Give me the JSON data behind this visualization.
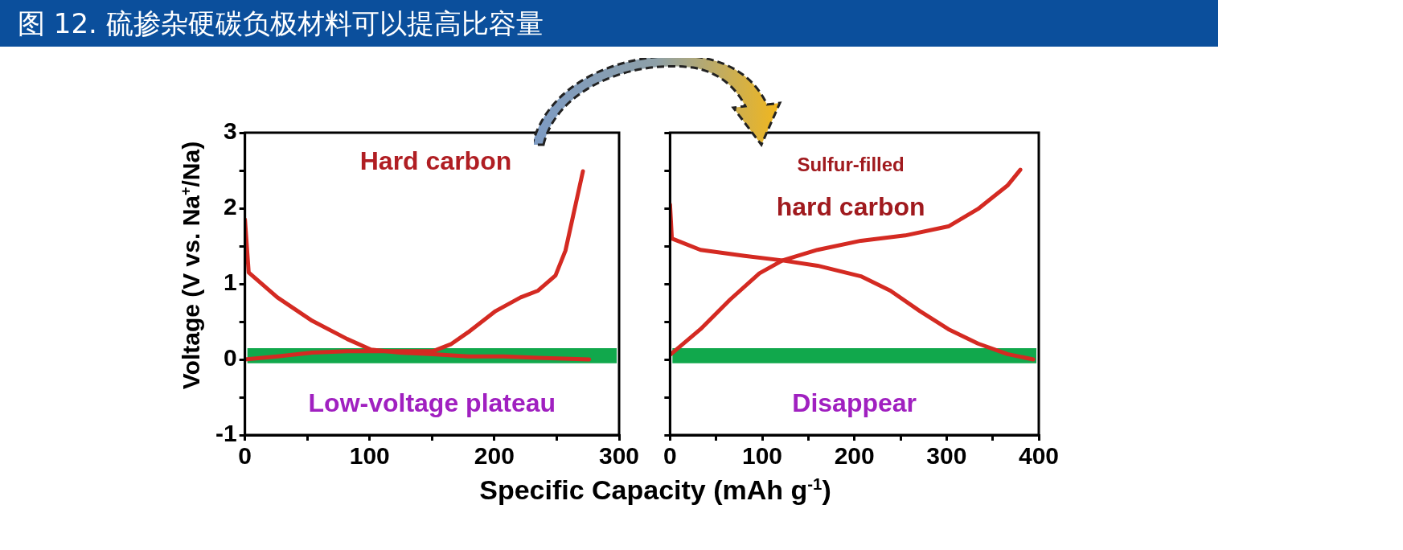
{
  "chart_data": [
    {
      "type": "line",
      "title": "图 12. 硫掺杂硬碳负极材料可以提高比容量",
      "xlabel": "Specific Capacity (mAh g$^{-1}$)",
      "ylabel": "Voltage (V vs. Na$^{+}$/Na)",
      "xlim": [
        0,
        300
      ],
      "ylim": [
        -1,
        3
      ],
      "xticks": [
        0,
        {
          "value": 50,
          "label": null
        },
        100,
        {
          "value": 150,
          "label": null
        },
        200,
        {
          "value": 250,
          "label": null
        },
        300
      ],
      "yticks": [
        -1,
        {
          "value": -0.5,
          "label": null
        },
        0,
        {
          "value": 0.5,
          "label": null
        },
        1,
        {
          "value": 1.5,
          "label": null
        },
        2,
        {
          "value": 2.5,
          "label": null
        },
        3
      ],
      "grid": false,
      "legend": false,
      "marker": "none",
      "line_style": "solid",
      "bands": [
        {
          "axis": "y",
          "from": -0.05,
          "to": 0.15,
          "color": "#11a84c"
        }
      ],
      "annotations": [
        "Hard carbon",
        "Low-voltage plateau"
      ],
      "series": [
        {
          "color": "#d42a22",
          "x": [
            0,
            3,
            26,
            54,
            82,
            101,
            124,
            151,
            179,
            207,
            235,
            276
          ],
          "values": [
            1.85,
            1.15,
            0.82,
            0.51,
            0.27,
            0.13,
            0.09,
            0.07,
            0.04,
            0.04,
            0.02,
            0.0
          ]
        },
        {
          "color": "#d42a22",
          "x": [
            0,
            26,
            54,
            82,
            124,
            151,
            165,
            179,
            201,
            221,
            235,
            249,
            257,
            263,
            271
          ],
          "values": [
            0.0,
            0.04,
            0.09,
            0.11,
            0.11,
            0.11,
            0.2,
            0.36,
            0.64,
            0.82,
            0.91,
            1.11,
            1.44,
            1.89,
            2.49
          ]
        }
      ]
    },
    {
      "type": "line",
      "xlim": [
        0,
        400
      ],
      "ylim": [
        -1,
        3
      ],
      "xticks": [
        0,
        {
          "value": 50,
          "label": null
        },
        100,
        {
          "value": 150,
          "label": null
        },
        200,
        {
          "value": 250,
          "label": null
        },
        300,
        {
          "value": 350,
          "label": null
        },
        400
      ],
      "yticks": [
        -1,
        {
          "value": -0.5,
          "label": null
        },
        0,
        {
          "value": 0.5,
          "label": null
        },
        1,
        {
          "value": 1.5,
          "label": null
        },
        2,
        {
          "value": 2.5,
          "label": null
        },
        3
      ],
      "tick_labels": "x",
      "grid": false,
      "legend": false,
      "marker": "none",
      "line_style": "solid",
      "bands": [
        {
          "axis": "y",
          "from": -0.05,
          "to": 0.15,
          "color": "#11a84c"
        }
      ],
      "annotations": [
        "Sulfur-filled",
        "hard carbon",
        "Disappear"
      ],
      "series": [
        {
          "color": "#d42a22",
          "x": [
            0,
            2,
            33,
            81,
            122,
            160,
            207,
            239,
            271,
            302,
            334,
            366,
            394
          ],
          "values": [
            2.05,
            1.6,
            1.45,
            1.37,
            1.31,
            1.24,
            1.1,
            0.91,
            0.64,
            0.4,
            0.21,
            0.07,
            0.0
          ]
        },
        {
          "color": "#d42a22",
          "x": [
            0,
            33,
            65,
            97,
            122,
            160,
            207,
            255,
            302,
            334,
            366,
            380
          ],
          "values": [
            0.06,
            0.4,
            0.79,
            1.14,
            1.31,
            1.45,
            1.57,
            1.64,
            1.76,
            1.99,
            2.3,
            2.51
          ]
        }
      ]
    }
  ]
}
